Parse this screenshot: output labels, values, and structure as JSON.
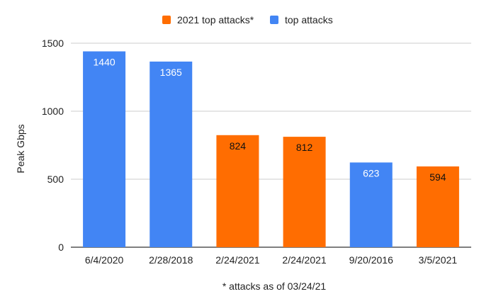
{
  "chart_data": {
    "type": "bar",
    "categories": [
      "6/4/2020",
      "2/28/2018",
      "2/24/2021",
      "2/24/2021",
      "9/20/2016",
      "3/5/2021"
    ],
    "values": [
      1440,
      1365,
      824,
      812,
      623,
      594
    ],
    "series_membership": [
      "top attacks",
      "top attacks",
      "2021 top attacks*",
      "2021 top attacks*",
      "top attacks",
      "2021 top attacks*"
    ],
    "data_labels": [
      "1440",
      "1365",
      "824",
      "812",
      "623",
      "594"
    ],
    "legend": [
      {
        "name": "2021 top attacks*",
        "color": "#ff6d01"
      },
      {
        "name": "top attacks",
        "color": "#4285f4"
      }
    ],
    "legend_position": "top-center",
    "ylabel": "Peak Gbps",
    "xlabel": "",
    "footnote": "* attacks as of 03/24/21",
    "ylim": [
      0,
      1500
    ],
    "yticks": [
      0,
      500,
      1000,
      1500
    ],
    "grid": true
  }
}
